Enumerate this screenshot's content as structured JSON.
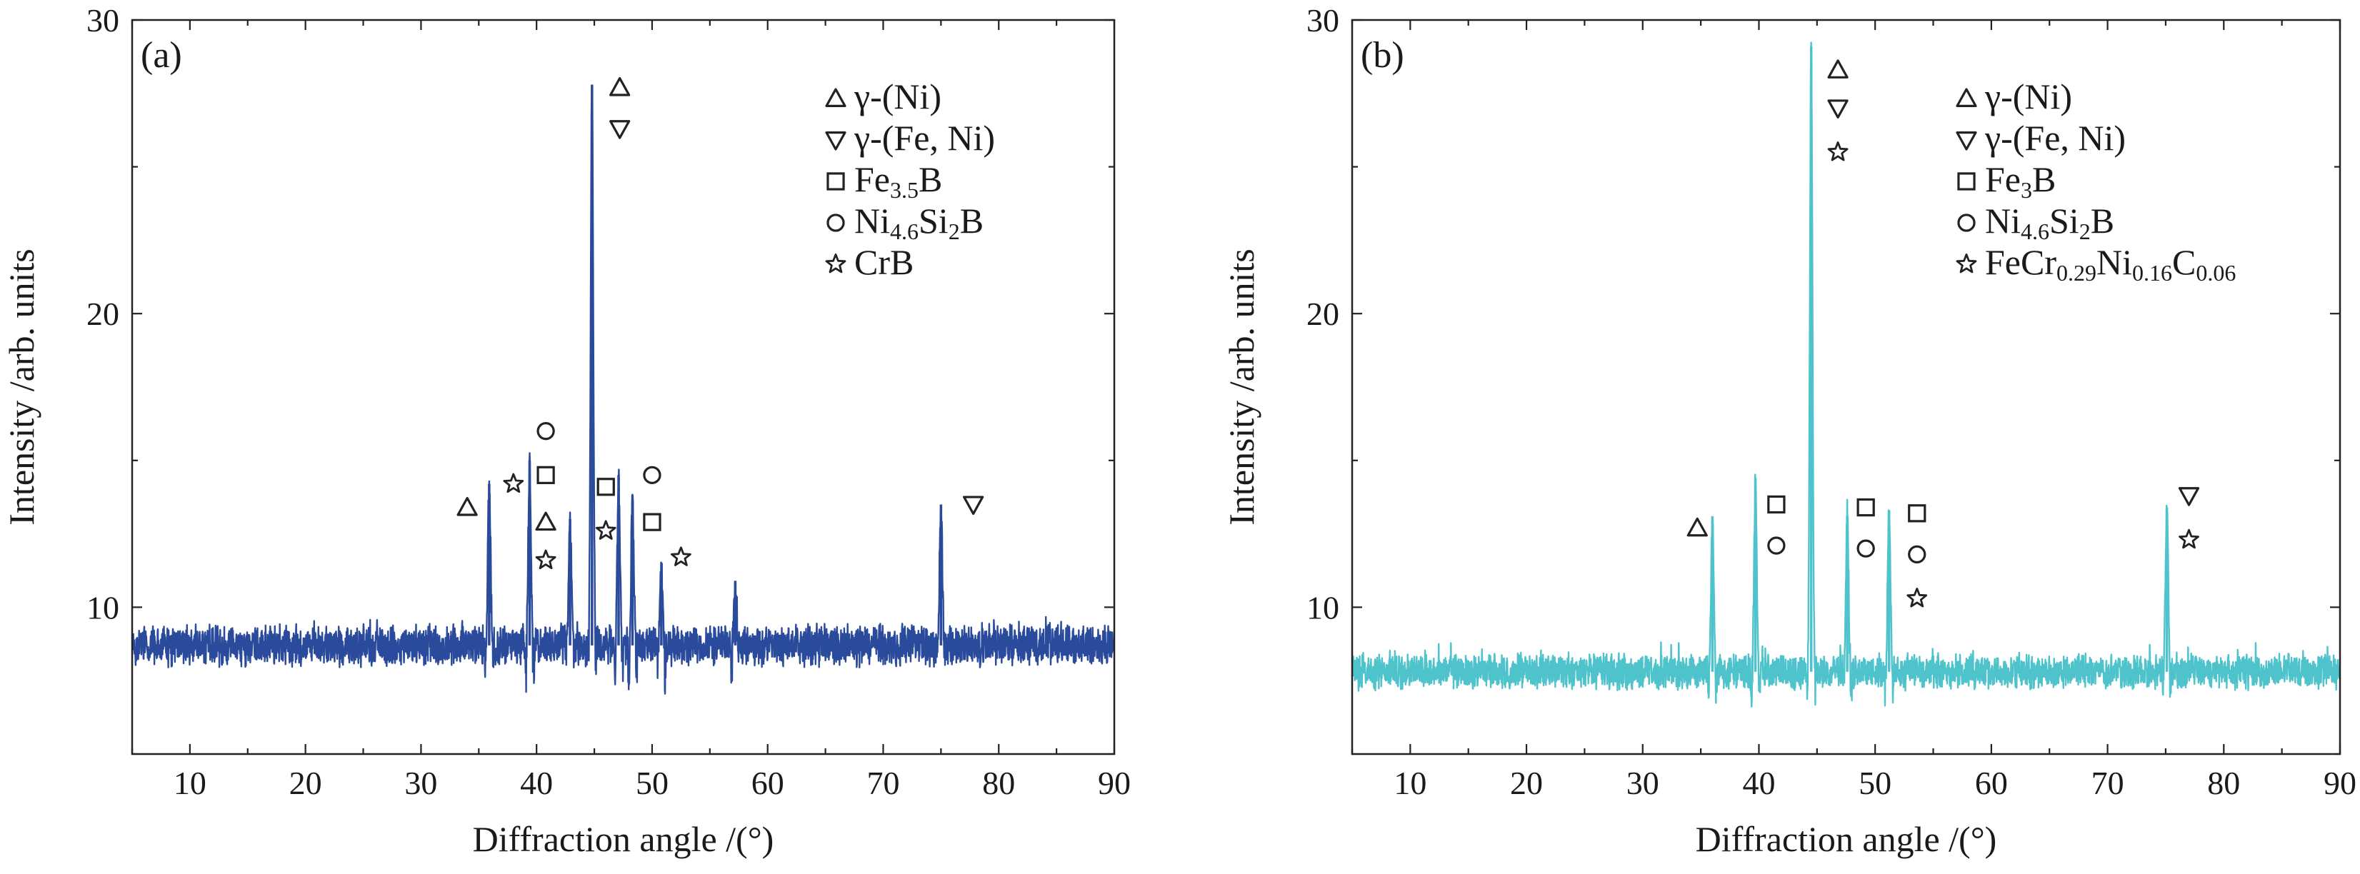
{
  "chart_data": [
    {
      "type": "line",
      "panel_label": "(a)",
      "xlabel": "Diffraction angle /(°)",
      "ylabel": "Intensity /arb. units",
      "xlim": [
        5,
        90
      ],
      "ylim": [
        5,
        30
      ],
      "x_ticks": [
        10,
        20,
        30,
        40,
        50,
        60,
        70,
        80,
        90
      ],
      "y_ticks": [
        10,
        20,
        30
      ],
      "grid": false,
      "legend_position": "top-right",
      "line_color": "#2a4a9c",
      "baseline": 8.7,
      "noise_amplitude": 0.65,
      "series": [
        {
          "peaks": [
            {
              "x": 35.9,
              "y": 14.2
            },
            {
              "x": 39.4,
              "y": 15.0
            },
            {
              "x": 42.9,
              "y": 13.0
            },
            {
              "x": 44.8,
              "y": 27.8
            },
            {
              "x": 47.1,
              "y": 14.5
            },
            {
              "x": 48.3,
              "y": 13.6
            },
            {
              "x": 50.8,
              "y": 11.0
            },
            {
              "x": 57.2,
              "y": 10.9
            },
            {
              "x": 75.0,
              "y": 13.5
            }
          ]
        }
      ],
      "legend": [
        {
          "symbol": "up-triangle",
          "text": "γ-(Ni)",
          "sub": []
        },
        {
          "symbol": "down-triangle",
          "text": "γ-(Fe, Ni)",
          "sub": []
        },
        {
          "symbol": "square",
          "text": "Fe3.5B",
          "sub": [
            [
              "Fe",
              ""
            ],
            [
              "3.5",
              "sub"
            ],
            [
              "B",
              ""
            ]
          ]
        },
        {
          "symbol": "circle",
          "text": "Ni4.6Si2B",
          "sub": [
            [
              "Ni",
              ""
            ],
            [
              "4.6",
              "sub"
            ],
            [
              "Si",
              ""
            ],
            [
              "2",
              "sub"
            ],
            [
              "B",
              ""
            ]
          ]
        },
        {
          "symbol": "star",
          "text": "CrB",
          "sub": []
        }
      ],
      "markers": [
        {
          "symbol": "up-triangle",
          "x": 34.0,
          "y": 13.4
        },
        {
          "symbol": "star",
          "x": 38.0,
          "y": 14.2
        },
        {
          "symbol": "circle",
          "x": 40.8,
          "y": 16.0
        },
        {
          "symbol": "square",
          "x": 40.8,
          "y": 14.5
        },
        {
          "symbol": "up-triangle",
          "x": 40.8,
          "y": 12.9
        },
        {
          "symbol": "star",
          "x": 40.8,
          "y": 11.6
        },
        {
          "symbol": "up-triangle",
          "x": 47.2,
          "y": 27.7
        },
        {
          "symbol": "down-triangle",
          "x": 47.2,
          "y": 26.3
        },
        {
          "symbol": "square",
          "x": 46.0,
          "y": 14.1
        },
        {
          "symbol": "star",
          "x": 46.0,
          "y": 12.6
        },
        {
          "symbol": "circle",
          "x": 50.0,
          "y": 14.5
        },
        {
          "symbol": "square",
          "x": 50.0,
          "y": 12.9
        },
        {
          "symbol": "star",
          "x": 52.5,
          "y": 11.7
        },
        {
          "symbol": "down-triangle",
          "x": 77.8,
          "y": 13.5
        }
      ]
    },
    {
      "type": "line",
      "panel_label": "(b)",
      "xlabel": "Diffraction angle /(°)",
      "ylabel": "Intensity /arb. units",
      "xlim": [
        5,
        90
      ],
      "ylim": [
        5,
        30
      ],
      "x_ticks": [
        10,
        20,
        30,
        40,
        50,
        60,
        70,
        80,
        90
      ],
      "y_ticks": [
        10,
        20,
        30
      ],
      "grid": false,
      "legend_position": "top-right",
      "line_color": "#4fc3cc",
      "baseline": 7.8,
      "noise_amplitude": 0.55,
      "series": [
        {
          "peaks": [
            {
              "x": 36.0,
              "y": 13.1
            },
            {
              "x": 39.7,
              "y": 14.4
            },
            {
              "x": 44.5,
              "y": 29.1
            },
            {
              "x": 47.6,
              "y": 13.1
            },
            {
              "x": 51.2,
              "y": 13.3
            },
            {
              "x": 75.1,
              "y": 13.4
            }
          ]
        }
      ],
      "legend": [
        {
          "symbol": "up-triangle",
          "text": "γ-(Ni)",
          "sub": []
        },
        {
          "symbol": "down-triangle",
          "text": "γ-(Fe, Ni)",
          "sub": []
        },
        {
          "symbol": "square",
          "text": "Fe3B",
          "sub": [
            [
              "Fe",
              ""
            ],
            [
              "3",
              "sub"
            ],
            [
              "B",
              ""
            ]
          ]
        },
        {
          "symbol": "circle",
          "text": "Ni4.6Si2B",
          "sub": [
            [
              "Ni",
              ""
            ],
            [
              "4.6",
              "sub"
            ],
            [
              "Si",
              ""
            ],
            [
              "2",
              "sub"
            ],
            [
              "B",
              ""
            ]
          ]
        },
        {
          "symbol": "star",
          "text": "FeCr0.29Ni0.16C0.06",
          "sub": [
            [
              "FeCr",
              ""
            ],
            [
              "0.29",
              "sub"
            ],
            [
              "Ni",
              ""
            ],
            [
              "0.16",
              "sub"
            ],
            [
              "C",
              ""
            ],
            [
              "0.06",
              "sub"
            ]
          ]
        }
      ],
      "markers": [
        {
          "symbol": "up-triangle",
          "x": 34.7,
          "y": 12.7
        },
        {
          "symbol": "square",
          "x": 41.5,
          "y": 13.5
        },
        {
          "symbol": "circle",
          "x": 41.5,
          "y": 12.1
        },
        {
          "symbol": "up-triangle",
          "x": 46.8,
          "y": 28.3
        },
        {
          "symbol": "down-triangle",
          "x": 46.8,
          "y": 27.0
        },
        {
          "symbol": "star",
          "x": 46.8,
          "y": 25.5
        },
        {
          "symbol": "square",
          "x": 49.2,
          "y": 13.4
        },
        {
          "symbol": "circle",
          "x": 49.2,
          "y": 12.0
        },
        {
          "symbol": "square",
          "x": 53.6,
          "y": 13.2
        },
        {
          "symbol": "circle",
          "x": 53.6,
          "y": 11.8
        },
        {
          "symbol": "star",
          "x": 53.6,
          "y": 10.3
        },
        {
          "symbol": "down-triangle",
          "x": 77.0,
          "y": 13.8
        },
        {
          "symbol": "star",
          "x": 77.0,
          "y": 12.3
        }
      ]
    }
  ]
}
